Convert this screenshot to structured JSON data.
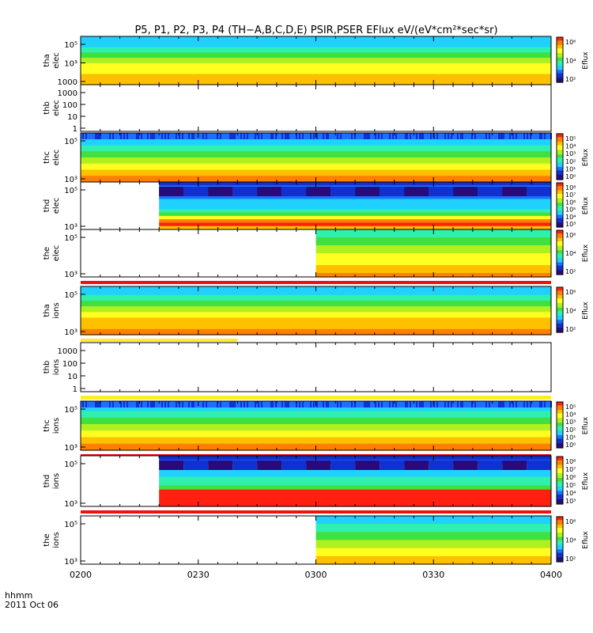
{
  "title": "P5, P1, P2, P3, P4 (TH−A,B,C,D,E) PSIR,PSER EFlux eV/(eV*cm²*sec*sr)",
  "time_axis": {
    "ticks": [
      "0200",
      "0230",
      "0300",
      "0330",
      "0400"
    ],
    "corner_label_line1": "hhmm",
    "corner_label_line2": "2011 Oct 06"
  },
  "colorbar_label": "Eflux",
  "colors": {
    "spectrogram_palette": [
      "#2a0a7a",
      "#1030d0",
      "#1a70ff",
      "#20d0ff",
      "#30f0b0",
      "#40e040",
      "#b0f020",
      "#ffff20",
      "#ffc000",
      "#ff8000",
      "#ff2010"
    ],
    "no_data": "#ffffff",
    "flag_red": "#ee1111",
    "flag_yellow": "#ffee22"
  },
  "chart_data": {
    "type": "heatmap",
    "x_range": [
      "0200",
      "0400"
    ],
    "panels": [
      {
        "label_line1": "tha",
        "label_line2": "elec",
        "y_scale": "log",
        "y_ticks": [
          "10⁵",
          "10³",
          "1000"
        ],
        "cbar_ticks": [
          "10⁶",
          "10⁴",
          "10²"
        ],
        "data_start": "0200",
        "data_end": "0400",
        "flag_after": null
      },
      {
        "label_line1": "thb",
        "label_line2": "elec",
        "y_scale": "log",
        "y_ticks": [
          "1000",
          "100",
          "10",
          "1"
        ],
        "cbar_ticks": null,
        "data_start": null,
        "data_end": null,
        "flag_after": null
      },
      {
        "label_line1": "thc",
        "label_line2": "elec",
        "y_scale": "log",
        "y_ticks": [
          "10⁵",
          "10³"
        ],
        "cbar_ticks": [
          "10⁵",
          "10⁴",
          "10³",
          "10²",
          "10¹",
          "10⁰"
        ],
        "data_start": "0200",
        "data_end": "0400",
        "flag_after": null
      },
      {
        "label_line1": "thd",
        "label_line2": "elec",
        "y_scale": "log",
        "y_ticks": [
          "10⁵",
          "10³"
        ],
        "cbar_ticks": [
          "10⁸",
          "10⁷",
          "10⁶",
          "10⁵",
          "10⁴",
          "10³"
        ],
        "data_start": "0220",
        "data_end": "0400",
        "flag_after": null
      },
      {
        "label_line1": "the",
        "label_line2": "elec",
        "y_scale": "log",
        "y_ticks": [
          "10⁵",
          "10³"
        ],
        "cbar_ticks": [
          "10⁶",
          "10⁴",
          "10²"
        ],
        "data_start": "0300",
        "data_end": "0400",
        "flag_after": "red"
      },
      {
        "label_line1": "tha",
        "label_line2": "ions",
        "y_scale": "log",
        "y_ticks": [
          "10⁵",
          "10³"
        ],
        "cbar_ticks": [
          "10⁶",
          "10⁴",
          "10²"
        ],
        "data_start": "0200",
        "data_end": "0400",
        "flag_after": "yellow-partial"
      },
      {
        "label_line1": "thb",
        "label_line2": "ions",
        "y_scale": "log",
        "y_ticks": [
          "1000",
          "100",
          "10",
          "1"
        ],
        "cbar_ticks": null,
        "data_start": null,
        "data_end": null,
        "flag_after": "yellow"
      },
      {
        "label_line1": "thc",
        "label_line2": "ions",
        "y_scale": "log",
        "y_ticks": [
          "10⁵",
          "10³"
        ],
        "cbar_ticks": [
          "10⁵",
          "10⁴",
          "10³",
          "10²",
          "10¹",
          "10⁰"
        ],
        "data_start": "0200",
        "data_end": "0400",
        "flag_after": "red"
      },
      {
        "label_line1": "thd",
        "label_line2": "ions",
        "y_scale": "log",
        "y_ticks": [
          "10⁵",
          "10³"
        ],
        "cbar_ticks": [
          "10⁸",
          "10⁷",
          "10⁶",
          "10⁵",
          "10⁴",
          "10³"
        ],
        "data_start": "0220",
        "data_end": "0400",
        "flag_after": "red"
      },
      {
        "label_line1": "the",
        "label_line2": "ions",
        "y_scale": "log",
        "y_ticks": [
          "10⁵",
          "10³"
        ],
        "cbar_ticks": [
          "10⁶",
          "10⁴",
          "10²"
        ],
        "data_start": "0300",
        "data_end": "0400",
        "flag_after": null
      }
    ]
  }
}
